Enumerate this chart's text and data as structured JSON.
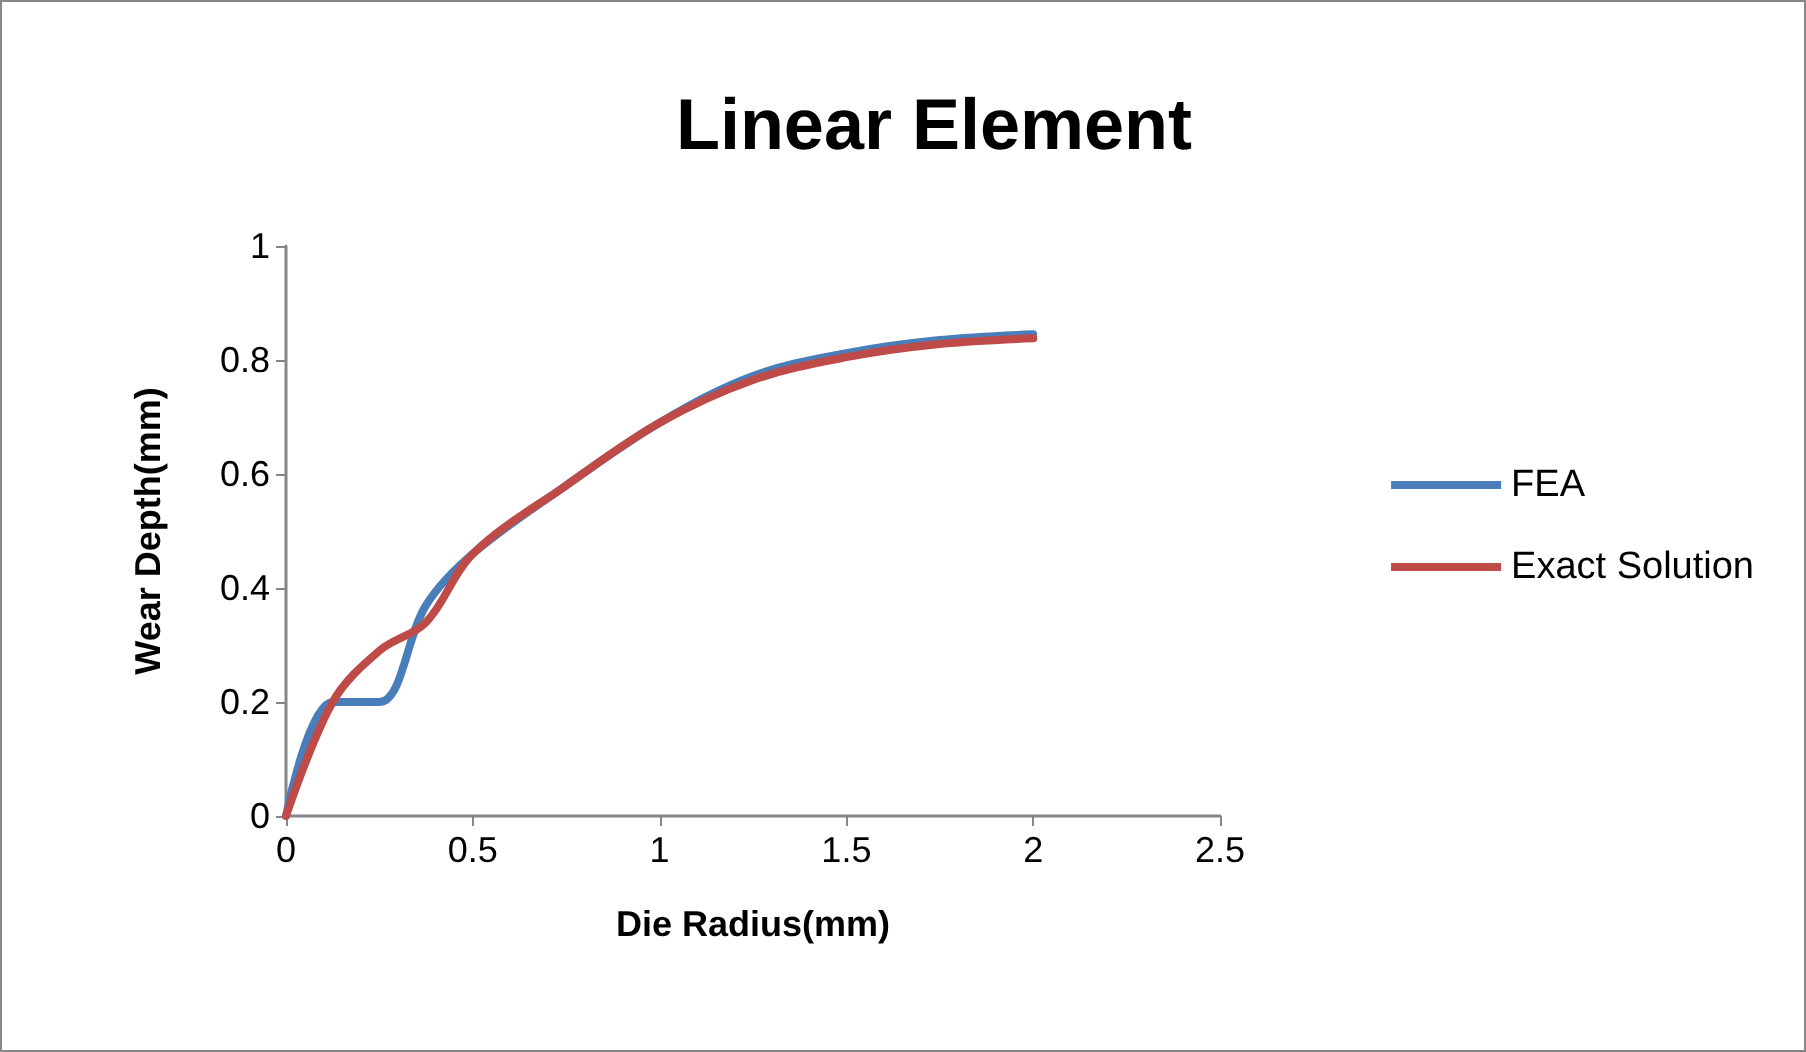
{
  "chart_data": {
    "type": "line",
    "title": "Linear Element",
    "xlabel": "Die Radius(mm)",
    "ylabel": "Wear Depth(mm)",
    "xlim": [
      0,
      2.5
    ],
    "xticks": [
      0,
      0.5,
      1,
      1.5,
      2,
      2.5
    ],
    "ylim": [
      0,
      1
    ],
    "yticks": [
      0,
      0.2,
      0.4,
      0.6,
      0.8,
      1
    ],
    "grid": false,
    "legend": "right",
    "marker": "none",
    "line_style": "solid",
    "series": [
      {
        "name": "FEA",
        "color": "#4a7ebb",
        "x": [
          0,
          0.125,
          0.25,
          0.375,
          0.5,
          0.75,
          1,
          1.25,
          1.5,
          1.75,
          2
        ],
        "values": [
          0,
          0.2,
          0.2,
          0.37,
          0.46,
          0.58,
          0.69,
          0.772,
          0.812,
          0.835,
          0.845
        ]
      },
      {
        "name": "Exact Solution",
        "color": "#be4b48",
        "x": [
          0,
          0.125,
          0.25,
          0.375,
          0.5,
          0.75,
          1,
          1.25,
          1.5,
          1.75,
          2
        ],
        "values": [
          0,
          0.2,
          0.29,
          0.34,
          0.46,
          0.58,
          0.69,
          0.765,
          0.805,
          0.828,
          0.838
        ]
      }
    ]
  }
}
